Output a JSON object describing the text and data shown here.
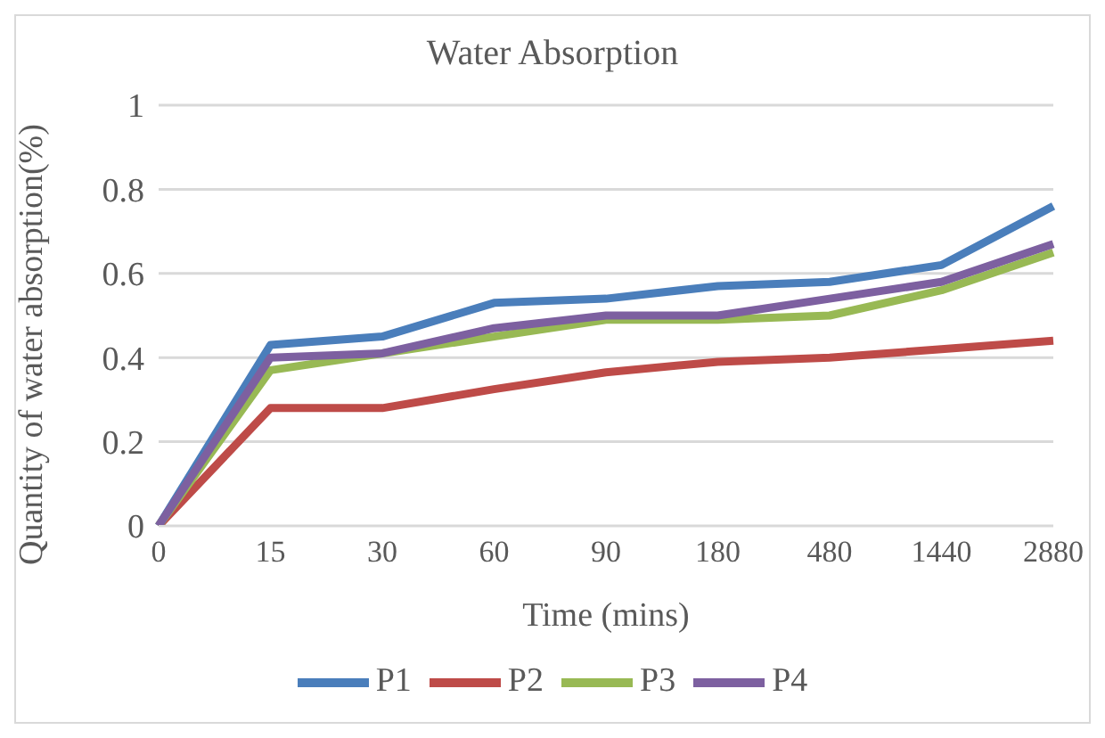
{
  "chart_data": {
    "type": "line",
    "title": "Water Absorption",
    "xlabel": "Time (mins)",
    "ylabel": "Quantity of water absorption(%)",
    "categories": [
      "0",
      "15",
      "30",
      "60",
      "90",
      "180",
      "480",
      "1440",
      "2880"
    ],
    "series": [
      {
        "name": "P1",
        "color": "#4a7ebb",
        "values": [
          0,
          0.43,
          0.45,
          0.53,
          0.54,
          0.57,
          0.58,
          0.62,
          0.76
        ]
      },
      {
        "name": "P2",
        "color": "#be4b48",
        "values": [
          0,
          0.28,
          0.28,
          0.325,
          0.365,
          0.39,
          0.4,
          0.42,
          0.44
        ]
      },
      {
        "name": "P3",
        "color": "#98b954",
        "values": [
          0,
          0.37,
          0.41,
          0.45,
          0.49,
          0.49,
          0.5,
          0.56,
          0.65
        ]
      },
      {
        "name": "P4",
        "color": "#7d60a0",
        "values": [
          0,
          0.4,
          0.41,
          0.47,
          0.5,
          0.5,
          0.54,
          0.58,
          0.67
        ]
      }
    ],
    "ylim": [
      0,
      1
    ],
    "yticks": [
      0,
      0.2,
      0.4,
      0.6,
      0.8,
      1
    ],
    "grid": "y",
    "legend": "bottom",
    "marker": "none",
    "line_style": "solid"
  }
}
